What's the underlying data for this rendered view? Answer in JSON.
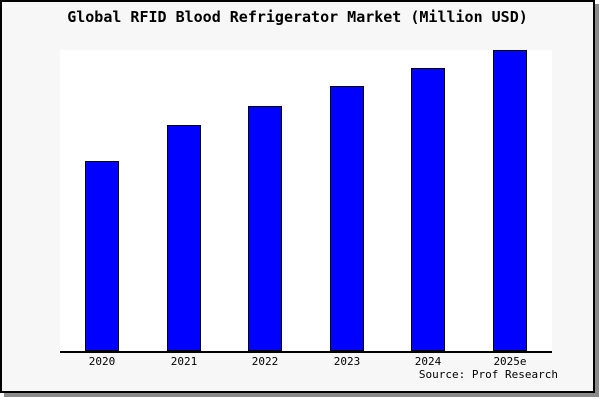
{
  "title": "Global RFID Blood Refrigerator Market (Million USD)",
  "colors": {
    "bar_fill": "#0000ff",
    "bar_border": "#000000",
    "figure_background": "#f7f7f7",
    "plot_background": "#ffffff",
    "axis": "#000000",
    "frame_border": "#000000",
    "frame_shadow": "#8a8a8a",
    "text": "#000000"
  },
  "chart_data": {
    "type": "bar",
    "title": "Global RFID Blood Refrigerator Market (Million USD)",
    "categories": [
      "2020",
      "2021",
      "2022",
      "2023",
      "2024",
      "2025e"
    ],
    "values": [
      63,
      75,
      81.5,
      88,
      94,
      100
    ],
    "xlabel": "",
    "ylabel": "",
    "ylim": [
      0,
      100
    ],
    "grid": false,
    "legend": null,
    "y_axis_visible": false,
    "bar_color": "#0000ff",
    "source": "Source: Prof Research",
    "note": "No y-axis scale shown in figure; values estimated from relative bar heights with 2025e = 100"
  }
}
